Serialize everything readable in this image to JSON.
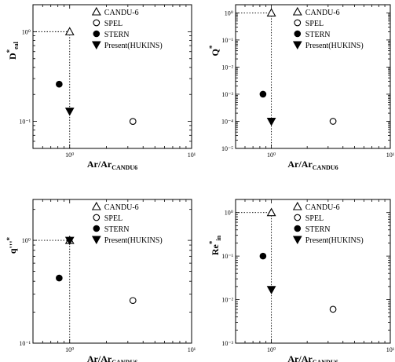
{
  "chart_data": [
    {
      "type": "scatter",
      "scale": {
        "x": "log",
        "y": "log"
      },
      "xlim": [
        0.5,
        10
      ],
      "ylim": [
        0.05,
        2
      ],
      "ylabel": {
        "main": "D",
        "sup": "*",
        "sub": "eal"
      },
      "xlabel": {
        "main": "Ar/Ar",
        "sub": "CANDU6"
      },
      "x_ticks": [
        {
          "value": 1,
          "label": "10⁰"
        },
        {
          "value": 10,
          "label": "10¹"
        }
      ],
      "y_ticks": [
        {
          "value": 1,
          "label": "10⁰"
        },
        {
          "value": 0.1,
          "label": "10⁻¹"
        }
      ],
      "guide_lines": true,
      "legend": {
        "placement": "top-right",
        "entries": [
          {
            "marker": "triangle-up-open",
            "label": "CANDU-6"
          },
          {
            "marker": "circle-open",
            "label": "SPEL"
          },
          {
            "marker": "circle-filled",
            "label": "STERN"
          },
          {
            "marker": "triangle-down-filled",
            "label": "Present(HUKINS)"
          }
        ]
      },
      "series": [
        {
          "marker": "triangle-up-open",
          "x": [
            1.0
          ],
          "y": [
            1.0
          ]
        },
        {
          "marker": "circle-open",
          "x": [
            3.3
          ],
          "y": [
            0.1
          ]
        },
        {
          "marker": "circle-filled",
          "x": [
            0.82
          ],
          "y": [
            0.26
          ]
        },
        {
          "marker": "triangle-down-filled",
          "x": [
            1.0
          ],
          "y": [
            0.13
          ]
        }
      ]
    },
    {
      "type": "scatter",
      "scale": {
        "x": "log",
        "y": "log"
      },
      "xlim": [
        0.5,
        10
      ],
      "ylim": [
        1e-05,
        2
      ],
      "ylabel": {
        "main": "Q",
        "sup": "*",
        "sub": ""
      },
      "xlabel": {
        "main": "Ar/Ar",
        "sub": "CANDU6"
      },
      "x_ticks": [
        {
          "value": 1,
          "label": "10⁰"
        },
        {
          "value": 10,
          "label": "10¹"
        }
      ],
      "y_ticks": [
        {
          "value": 1,
          "label": "10⁰"
        },
        {
          "value": 0.1,
          "label": "10⁻¹"
        },
        {
          "value": 0.01,
          "label": "10⁻²"
        },
        {
          "value": 0.001,
          "label": "10⁻³"
        },
        {
          "value": 0.0001,
          "label": "10⁻⁴"
        },
        {
          "value": 1e-05,
          "label": "10⁻⁵"
        }
      ],
      "guide_lines": true,
      "legend": {
        "placement": "top-right",
        "entries": [
          {
            "marker": "triangle-up-open",
            "label": "CANDU-6"
          },
          {
            "marker": "circle-open",
            "label": "SPEL"
          },
          {
            "marker": "circle-filled",
            "label": "STERN"
          },
          {
            "marker": "triangle-down-filled",
            "label": "Present(HUKINS)"
          }
        ]
      },
      "series": [
        {
          "marker": "triangle-up-open",
          "x": [
            1.0
          ],
          "y": [
            1.0
          ]
        },
        {
          "marker": "circle-open",
          "x": [
            3.3
          ],
          "y": [
            0.0001
          ]
        },
        {
          "marker": "circle-filled",
          "x": [
            0.85
          ],
          "y": [
            0.001
          ]
        },
        {
          "marker": "triangle-down-filled",
          "x": [
            1.0
          ],
          "y": [
            0.0001
          ]
        }
      ]
    },
    {
      "type": "scatter",
      "scale": {
        "x": "log",
        "y": "log"
      },
      "xlim": [
        0.5,
        10
      ],
      "ylim": [
        0.1,
        2.5
      ],
      "ylabel": {
        "main": "q'''",
        "sup": "*",
        "sub": ""
      },
      "xlabel": {
        "main": "Ar/Ar",
        "sub": "CANDU6"
      },
      "x_ticks": [
        {
          "value": 1,
          "label": "10⁰"
        },
        {
          "value": 10,
          "label": "10¹"
        }
      ],
      "y_ticks": [
        {
          "value": 1,
          "label": "10⁰"
        },
        {
          "value": 0.1,
          "label": "10⁻¹"
        }
      ],
      "guide_lines": true,
      "legend": {
        "placement": "top-right",
        "entries": [
          {
            "marker": "triangle-up-open",
            "label": "CANDU-6"
          },
          {
            "marker": "circle-open",
            "label": "SPEL"
          },
          {
            "marker": "circle-filled",
            "label": "STERN"
          },
          {
            "marker": "triangle-down-filled",
            "label": "Present(HUKINS)"
          }
        ]
      },
      "series": [
        {
          "marker": "triangle-up-open",
          "x": [
            1.0
          ],
          "y": [
            1.0
          ]
        },
        {
          "marker": "circle-open",
          "x": [
            3.3
          ],
          "y": [
            0.26
          ]
        },
        {
          "marker": "circle-filled",
          "x": [
            0.82
          ],
          "y": [
            0.43
          ]
        },
        {
          "marker": "triangle-down-filled",
          "x": [
            1.0
          ],
          "y": [
            1.0
          ]
        }
      ]
    },
    {
      "type": "scatter",
      "scale": {
        "x": "log",
        "y": "log"
      },
      "xlim": [
        0.5,
        10
      ],
      "ylim": [
        0.001,
        2
      ],
      "ylabel": {
        "main": "Re",
        "sup": "*",
        "sub": "in"
      },
      "xlabel": {
        "main": "Ar/Ar",
        "sub": "CANDU6"
      },
      "x_ticks": [
        {
          "value": 1,
          "label": "10⁰"
        },
        {
          "value": 10,
          "label": "10¹"
        }
      ],
      "y_ticks": [
        {
          "value": 1,
          "label": "10⁰"
        },
        {
          "value": 0.1,
          "label": "10⁻¹"
        },
        {
          "value": 0.01,
          "label": "10⁻²"
        },
        {
          "value": 0.001,
          "label": "10⁻³"
        }
      ],
      "guide_lines": true,
      "legend": {
        "placement": "top-right",
        "entries": [
          {
            "marker": "triangle-up-open",
            "label": "CANDU-6"
          },
          {
            "marker": "circle-open",
            "label": "SPEL"
          },
          {
            "marker": "circle-filled",
            "label": "STERN"
          },
          {
            "marker": "triangle-down-filled",
            "label": "Present(HUKINS)"
          }
        ]
      },
      "series": [
        {
          "marker": "triangle-up-open",
          "x": [
            1.0
          ],
          "y": [
            1.0
          ]
        },
        {
          "marker": "circle-open",
          "x": [
            3.3
          ],
          "y": [
            0.006
          ]
        },
        {
          "marker": "circle-filled",
          "x": [
            0.85
          ],
          "y": [
            0.1
          ]
        },
        {
          "marker": "triangle-down-filled",
          "x": [
            1.0
          ],
          "y": [
            0.017
          ]
        }
      ]
    }
  ]
}
